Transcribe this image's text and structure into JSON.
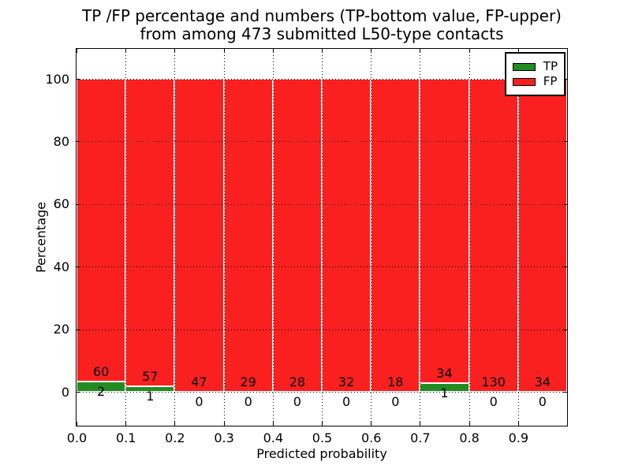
{
  "chart_data": {
    "type": "bar",
    "stacked": true,
    "percent_normalized": true,
    "title_lines": [
      "TP /FP percentage and numbers (TP-bottom value, FP-upper)",
      "from among 473 submitted L50-type contacts"
    ],
    "total_contacts": 473,
    "xlabel": "Predicted probability",
    "ylabel": "Percentage",
    "bin_edges": [
      0.0,
      0.1,
      0.2,
      0.3,
      0.4,
      0.5,
      0.6,
      0.7,
      0.8,
      0.9,
      1.0
    ],
    "categories": [
      "0.0-0.1",
      "0.1-0.2",
      "0.2-0.3",
      "0.3-0.4",
      "0.4-0.5",
      "0.5-0.6",
      "0.6-0.7",
      "0.7-0.8",
      "0.8-0.9",
      "0.9-1.0"
    ],
    "series": [
      {
        "name": "TP",
        "color": "#228b22",
        "counts": [
          2,
          1,
          0,
          0,
          0,
          0,
          0,
          1,
          0,
          0
        ],
        "percent": [
          3.2,
          1.7,
          0.0,
          0.0,
          0.0,
          0.0,
          0.0,
          2.9,
          0.0,
          0.0
        ]
      },
      {
        "name": "FP",
        "color": "#fa2020",
        "counts": [
          60,
          57,
          47,
          29,
          28,
          32,
          18,
          34,
          130,
          34
        ],
        "percent": [
          96.8,
          98.3,
          100.0,
          100.0,
          100.0,
          100.0,
          100.0,
          97.1,
          100.0,
          100.0
        ]
      }
    ],
    "bar_edge_color": "#ffffff",
    "x_tick_labels": [
      "0.0",
      "0.1",
      "0.2",
      "0.3",
      "0.4",
      "0.5",
      "0.6",
      "0.7",
      "0.8",
      "0.9"
    ],
    "y_tick_values": [
      0,
      20,
      40,
      60,
      80,
      100
    ],
    "xlim": [
      0.0,
      1.0
    ],
    "ylim": [
      -11,
      110
    ],
    "grid": "dotted-black-both-axes",
    "legend": {
      "position": "upper right",
      "entries": [
        {
          "label": "TP",
          "color": "#228b22"
        },
        {
          "label": "FP",
          "color": "#fa2020"
        }
      ]
    }
  }
}
